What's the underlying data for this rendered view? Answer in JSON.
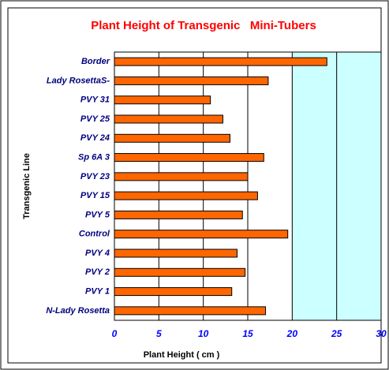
{
  "chart_data": {
    "type": "hbar",
    "title": "Plant Height of Transgenic   Mini-Tubers",
    "x_label": "Plant Height ( cm )",
    "y_label": "Transgenic Line",
    "categories": [
      "Border",
      "Lady RosettaS-",
      "PVY 31",
      "PVY 25",
      "PVY 24",
      "Sp 6A 3",
      "PVY 23",
      "PVY 15",
      "PVY 5",
      "Control",
      "PVY 4",
      "PVY 2",
      "PVY 1",
      "N-Lady Rosetta"
    ],
    "values": [
      23.9,
      17.3,
      10.8,
      12.2,
      13.0,
      16.8,
      15.0,
      16.1,
      14.4,
      19.5,
      13.8,
      14.7,
      13.2,
      17.0
    ],
    "color": "#ff6600",
    "xlim": [
      0,
      30
    ],
    "xticks": [
      0,
      5,
      10,
      15,
      20,
      25,
      30
    ],
    "grid": true
  }
}
